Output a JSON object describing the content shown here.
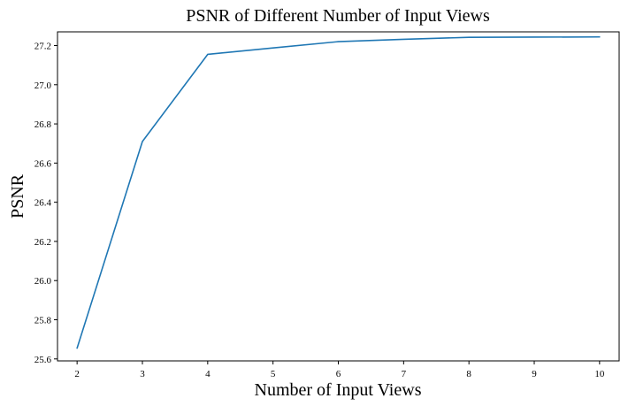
{
  "chart_data": {
    "type": "line",
    "title": "PSNR of Different Number of Input Views",
    "xlabel": "Number of Input Views",
    "ylabel": "PSNR",
    "xlim": [
      1.7,
      10.3
    ],
    "ylim": [
      25.59,
      27.27
    ],
    "xticks": [
      2,
      3,
      4,
      5,
      6,
      7,
      8,
      9,
      10
    ],
    "yticks": [
      25.6,
      25.8,
      26.0,
      26.2,
      26.4,
      26.6,
      26.8,
      27.0,
      27.2
    ],
    "xtick_labels": [
      "2",
      "3",
      "4",
      "5",
      "6",
      "7",
      "8",
      "9",
      "10"
    ],
    "ytick_labels": [
      "25.6",
      "25.8",
      "26.0",
      "26.2",
      "26.4",
      "26.6",
      "26.8",
      "27.0",
      "27.2"
    ],
    "grid": false,
    "series": [
      {
        "color": "#1f77b4",
        "x": [
          2,
          3,
          4,
          5,
          6,
          7,
          8,
          9,
          10
        ],
        "y": [
          25.655,
          26.71,
          27.155,
          27.188,
          27.22,
          27.232,
          27.242,
          27.243,
          27.244
        ]
      }
    ]
  }
}
